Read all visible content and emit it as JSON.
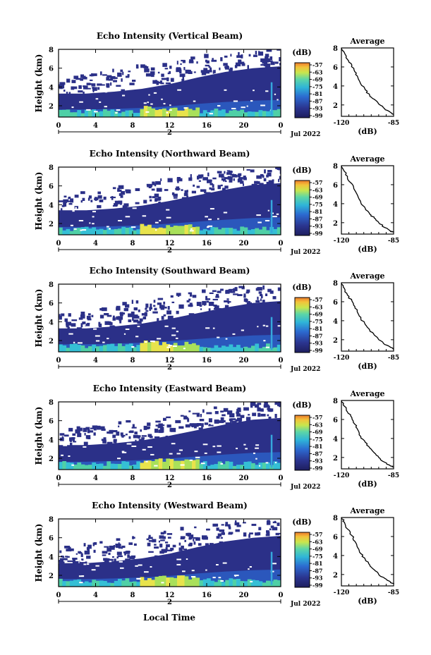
{
  "figure": {
    "xlabel_bottom": "Local Time",
    "date_label": "Jul 2022",
    "day_label": "2",
    "colorbar_title": "(dB)",
    "colorbar_ticks": [
      "-57",
      "-63",
      "-69",
      "-75",
      "-81",
      "-87",
      "-93",
      "-99"
    ],
    "colorbar_colors": [
      "#d63a2a",
      "#ee7a2a",
      "#f7c33a",
      "#e7e14a",
      "#a8e05a",
      "#4fd0a0",
      "#2fb8d8",
      "#2a84d6",
      "#2a4fc0",
      "#2a2f8a",
      "#1a1a5a"
    ],
    "avg_title": "Average",
    "avg_xlabel": "(dB)"
  },
  "chart_data": [
    {
      "type": "heatmap",
      "title": "Echo Intensity (Vertical Beam)",
      "ylabel": "Height (km)",
      "xticks": [
        "0",
        "4",
        "8",
        "12",
        "16",
        "20",
        "0"
      ],
      "yticks": [
        "2",
        "4",
        "6",
        "8"
      ],
      "xlim": [
        0,
        24
      ],
      "ylim": [
        0.8,
        8
      ],
      "top_km": [
        3.3,
        3.3,
        3.5,
        3.8,
        4.3,
        5.0,
        5.6,
        6.0,
        6.2
      ],
      "avg_profile": {
        "height_km": [
          8,
          7.5,
          6.8,
          6.2,
          5.5,
          4.9,
          4.2,
          3.6,
          3.0,
          2.6,
          2.1,
          1.6,
          1.2,
          1.0
        ],
        "db": [
          -120,
          -118,
          -116,
          -113,
          -111,
          -109,
          -107,
          -104,
          -101,
          -98,
          -95,
          -91,
          -87,
          -85
        ]
      },
      "avg_xticks": [
        "-120",
        "-85"
      ],
      "avg_xlim": [
        -120,
        -85
      ],
      "avg_yticks": [
        "2",
        "4",
        "6",
        "8"
      ]
    },
    {
      "type": "heatmap",
      "title": "Echo Intensity (Northward Beam)",
      "ylabel": "Height (km)",
      "xticks": [
        "0",
        "4",
        "8",
        "12",
        "16",
        "20",
        "0"
      ],
      "yticks": [
        "2",
        "4",
        "6",
        "8"
      ],
      "xlim": [
        0,
        24
      ],
      "ylim": [
        0.8,
        8
      ],
      "top_km": [
        3.4,
        3.4,
        3.6,
        3.9,
        4.4,
        5.0,
        5.6,
        6.1,
        6.3
      ],
      "avg_profile": {
        "height_km": [
          8,
          7.4,
          6.7,
          6.1,
          5.4,
          4.8,
          4.1,
          3.5,
          2.9,
          2.5,
          2.0,
          1.5,
          1.1,
          1.0
        ],
        "db": [
          -120,
          -118,
          -116,
          -113,
          -111,
          -109,
          -107,
          -104,
          -101,
          -98,
          -95,
          -91,
          -87,
          -85
        ]
      },
      "avg_xticks": [
        "-120",
        "-85"
      ],
      "avg_xlim": [
        -120,
        -85
      ],
      "avg_yticks": [
        "2",
        "4",
        "6",
        "8"
      ]
    },
    {
      "type": "heatmap",
      "title": "Echo Intensity (Southward Beam)",
      "ylabel": "Height (km)",
      "xticks": [
        "0",
        "4",
        "8",
        "12",
        "16",
        "20",
        "0"
      ],
      "yticks": [
        "2",
        "4",
        "6",
        "8"
      ],
      "xlim": [
        0,
        24
      ],
      "ylim": [
        0.8,
        8
      ],
      "top_km": [
        3.3,
        3.3,
        3.5,
        3.8,
        4.3,
        4.9,
        5.5,
        6.0,
        6.2
      ],
      "avg_profile": {
        "height_km": [
          8,
          7.4,
          6.7,
          6.1,
          5.5,
          4.8,
          4.2,
          3.6,
          3.0,
          2.5,
          2.0,
          1.5,
          1.2,
          1.0
        ],
        "db": [
          -120,
          -118,
          -116,
          -113,
          -111,
          -109,
          -107,
          -104,
          -101,
          -98,
          -95,
          -91,
          -87,
          -85
        ]
      },
      "avg_xticks": [
        "-120",
        "-85"
      ],
      "avg_xlim": [
        -120,
        -85
      ],
      "avg_yticks": [
        "2",
        "4",
        "6",
        "8"
      ]
    },
    {
      "type": "heatmap",
      "title": "Echo Intensity (Eastward Beam)",
      "ylabel": "Height (km)",
      "xticks": [
        "0",
        "4",
        "8",
        "12",
        "16",
        "20",
        "0"
      ],
      "yticks": [
        "2",
        "4",
        "6",
        "8"
      ],
      "xlim": [
        0,
        24
      ],
      "ylim": [
        0.8,
        8
      ],
      "top_km": [
        3.4,
        3.4,
        3.6,
        3.9,
        4.4,
        5.0,
        5.6,
        6.1,
        6.3
      ],
      "avg_profile": {
        "height_km": [
          8,
          7.4,
          6.8,
          6.2,
          5.5,
          4.9,
          4.2,
          3.6,
          3.0,
          2.5,
          2.0,
          1.5,
          1.1,
          1.0
        ],
        "db": [
          -120,
          -118,
          -116,
          -113,
          -111,
          -109,
          -107,
          -104,
          -101,
          -98,
          -95,
          -91,
          -87,
          -85
        ]
      },
      "avg_xticks": [
        "-120",
        "-85"
      ],
      "avg_xlim": [
        -120,
        -85
      ],
      "avg_yticks": [
        "2",
        "4",
        "6",
        "8"
      ]
    },
    {
      "type": "heatmap",
      "title": "Echo Intensity (Westward Beam)",
      "ylabel": "Height (km)",
      "xticks": [
        "0",
        "4",
        "8",
        "12",
        "16",
        "20",
        "0"
      ],
      "yticks": [
        "2",
        "4",
        "6",
        "8"
      ],
      "xlim": [
        0,
        24
      ],
      "ylim": [
        0.8,
        8
      ],
      "top_km": [
        3.3,
        3.3,
        3.5,
        3.8,
        4.3,
        5.0,
        5.6,
        6.0,
        6.2
      ],
      "avg_profile": {
        "height_km": [
          8,
          7.5,
          6.8,
          6.1,
          5.5,
          4.8,
          4.2,
          3.6,
          3.0,
          2.5,
          2.0,
          1.6,
          1.2,
          1.0
        ],
        "db": [
          -120,
          -118,
          -116,
          -113,
          -111,
          -109,
          -107,
          -104,
          -101,
          -98,
          -95,
          -91,
          -87,
          -85
        ]
      },
      "avg_xticks": [
        "-120",
        "-85"
      ],
      "avg_xlim": [
        -120,
        -85
      ],
      "avg_yticks": [
        "2",
        "4",
        "6",
        "8"
      ]
    }
  ]
}
